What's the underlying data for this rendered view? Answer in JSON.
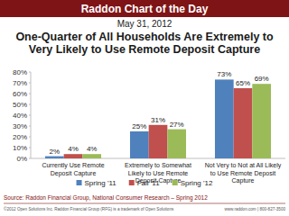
{
  "chart_data": {
    "type": "bar",
    "header": "Raddon Chart of the Day",
    "date": "May 31, 2012",
    "title": "One-Quarter of All Households Are Extremely to Very Likely to Use Remote Deposit Capture",
    "categories": [
      "Currently Use Remote Deposit Capture",
      "Extremely to Somewhat Likely to Use Remote Deposit Capture",
      "Not Very to Not at All Likely to Use Remote Deposit Capture"
    ],
    "series": [
      {
        "name": "Spring '11",
        "color": "#4f81bd",
        "values": [
          2,
          25,
          73
        ],
        "value_labels": [
          "2%",
          "25%",
          "73%"
        ]
      },
      {
        "name": "Fall '11",
        "color": "#c0504d",
        "values": [
          4,
          31,
          65
        ],
        "value_labels": [
          "4%",
          "31%",
          "65%"
        ]
      },
      {
        "name": "Spring '12",
        "color": "#9bbb59",
        "values": [
          4,
          27,
          69
        ],
        "value_labels": [
          "4%",
          "27%",
          "69%"
        ]
      }
    ],
    "ylim": [
      0,
      80
    ],
    "yticks": [
      {
        "value": 0,
        "label": "0%"
      },
      {
        "value": 10,
        "label": "10%"
      },
      {
        "value": 20,
        "label": "20%"
      },
      {
        "value": 30,
        "label": "30%"
      },
      {
        "value": 40,
        "label": "40%"
      },
      {
        "value": 50,
        "label": "50%"
      },
      {
        "value": 60,
        "label": "60%"
      },
      {
        "value": 70,
        "label": "70%"
      },
      {
        "value": 80,
        "label": "80%"
      }
    ],
    "grid": false,
    "legend": "bottom",
    "data_labels": true,
    "source": "Source: Raddon Financial Group, National Consumer Research – Spring 2012",
    "copyright": "©2012 Open Solutions Inc. Raddon Financial Group (RFG) is a trademark of Open Solutions",
    "contact": "www.raddon.com | 800-827-3500"
  }
}
